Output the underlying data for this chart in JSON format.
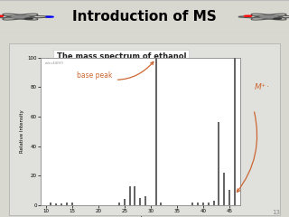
{
  "title": "Introduction of MS",
  "subtitle": "The mass spectrum of ethanol",
  "ylabel": "Relative Intensity",
  "xlabel": "m/z",
  "slide_bg": "#d8d8d0",
  "header_bg": "#d0d0cc",
  "header_border": "#bbbbbb",
  "content_bg": "#c8c8c0",
  "plot_bg": "#ffffff",
  "plot_border_bg": "#e8e8e4",
  "bar_color": "#666666",
  "title_color": "#000000",
  "subtitle_color": "#222222",
  "annotation_color": "#cc6633",
  "green_line": "#99bb00",
  "ylim": [
    0,
    100
  ],
  "xlim": [
    9,
    47
  ],
  "xticks": [
    10,
    15,
    20,
    25,
    30,
    35,
    40,
    45
  ],
  "yticks": [
    0,
    20,
    40,
    60,
    80,
    100
  ],
  "peaks": [
    {
      "mz": 11,
      "intensity": 2
    },
    {
      "mz": 12,
      "intensity": 1
    },
    {
      "mz": 13,
      "intensity": 1
    },
    {
      "mz": 14,
      "intensity": 2
    },
    {
      "mz": 15,
      "intensity": 2
    },
    {
      "mz": 24,
      "intensity": 2
    },
    {
      "mz": 25,
      "intensity": 4
    },
    {
      "mz": 26,
      "intensity": 13
    },
    {
      "mz": 27,
      "intensity": 13
    },
    {
      "mz": 28,
      "intensity": 5
    },
    {
      "mz": 29,
      "intensity": 6
    },
    {
      "mz": 31,
      "intensity": 100
    },
    {
      "mz": 32,
      "intensity": 2
    },
    {
      "mz": 38,
      "intensity": 2
    },
    {
      "mz": 39,
      "intensity": 2
    },
    {
      "mz": 40,
      "intensity": 2
    },
    {
      "mz": 41,
      "intensity": 2
    },
    {
      "mz": 42,
      "intensity": 3
    },
    {
      "mz": 43,
      "intensity": 56
    },
    {
      "mz": 44,
      "intensity": 22
    },
    {
      "mz": 45,
      "intensity": 10
    },
    {
      "mz": 46,
      "intensity": 100
    }
  ],
  "base_peak_mz": 31,
  "Mplus_mz": 46,
  "page_num": "13"
}
